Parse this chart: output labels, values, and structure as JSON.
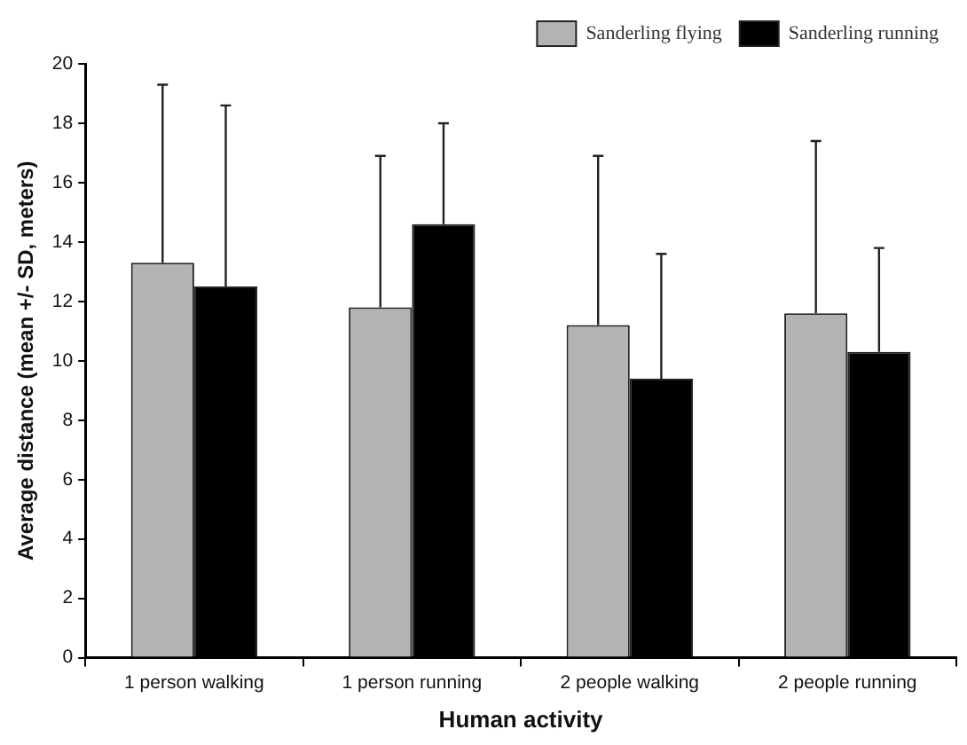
{
  "chart_data": {
    "type": "bar",
    "xlabel": "Human activity",
    "ylabel": "Average distance (mean +/- SD, meters)",
    "categories": [
      "1 person walking",
      "1 person running",
      "2 people walking",
      "2 people running"
    ],
    "series": [
      {
        "name": "Sanderling flying",
        "color": "#b3b3b3",
        "values": [
          13.3,
          11.8,
          11.2,
          11.6
        ],
        "errors": [
          [
            13.3,
            19.3
          ],
          [
            11.8,
            16.9
          ],
          [
            11.2,
            16.9
          ],
          [
            11.6,
            17.4
          ]
        ]
      },
      {
        "name": "Sanderling running",
        "color": "#000000",
        "values": [
          12.5,
          14.6,
          9.4,
          10.3
        ],
        "errors": [
          [
            12.5,
            18.6
          ],
          [
            14.6,
            18.0
          ],
          [
            9.4,
            13.6
          ],
          [
            10.3,
            13.8
          ]
        ]
      }
    ],
    "ylim": [
      0,
      20
    ],
    "yticks": [
      0,
      2,
      4,
      6,
      8,
      10,
      12,
      14,
      16,
      18,
      20
    ],
    "grid": false,
    "legend": "top right"
  }
}
